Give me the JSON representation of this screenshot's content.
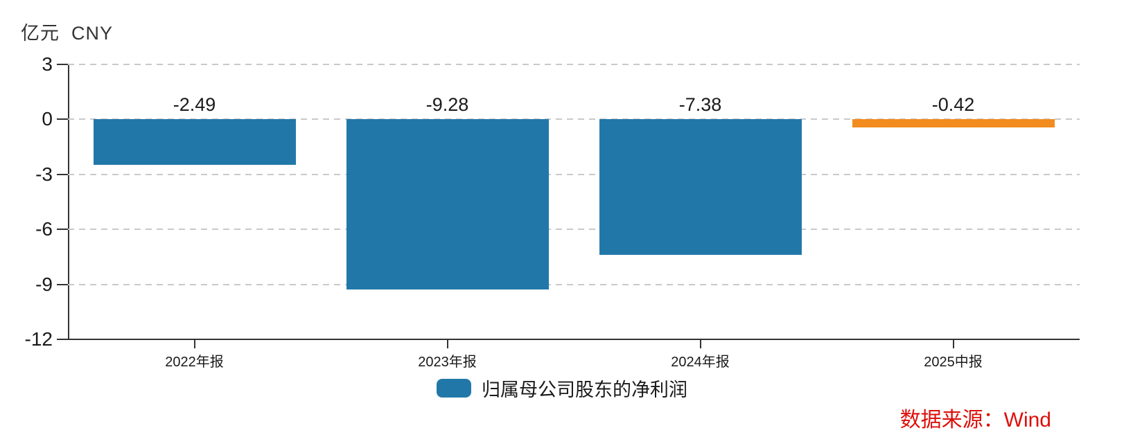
{
  "header": {
    "unit_label": "亿元  CNY"
  },
  "chart_data": {
    "type": "bar",
    "title": "",
    "categories": [
      "2022年报",
      "2023年报",
      "2024年报",
      "2025中报"
    ],
    "values": [
      -2.49,
      -9.28,
      -7.38,
      -0.42
    ],
    "value_labels": [
      "-2.49",
      "-9.28",
      "-7.38",
      "-0.42"
    ],
    "series_name": "归属母公司股东的净利润",
    "ylabel": "亿元 CNY",
    "ylim": [
      -12,
      3
    ],
    "yticks": [
      3,
      0,
      -3,
      -6,
      -9,
      -12
    ],
    "grid": "horizontal dashed gridlines at each y tick",
    "legend_position": "bottom center",
    "bar_colors": [
      "#2178A8",
      "#2178A8",
      "#2178A8",
      "#F28C1E"
    ]
  },
  "legend": {
    "label": "归属母公司股东的净利润",
    "swatch_color": "#2178A8"
  },
  "source": {
    "label": "数据来源：Wind",
    "color": "#DD100C"
  },
  "colors": {
    "bar_blue": "#2178A8",
    "bar_orange": "#F28C1E",
    "gridline": "#C9C9C9",
    "axis": "#333333",
    "text": "#1A1A1A"
  }
}
